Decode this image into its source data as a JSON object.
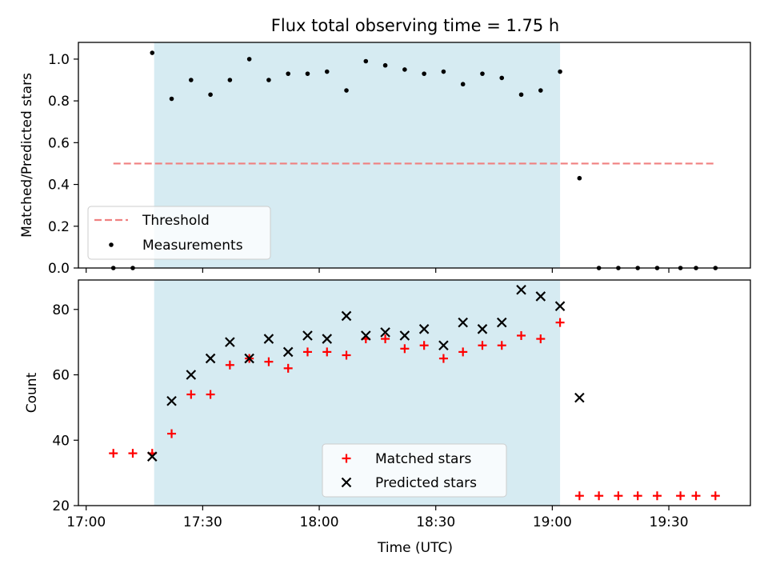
{
  "chart_data": {
    "title": "Flux total observing time = 1.75 h",
    "xlabel": "Time (UTC)",
    "x_domain_min": [
      16,
      58
    ],
    "x_domain_max": [
      19,
      51
    ],
    "x_ticks": [
      {
        "t": [
          17,
          0
        ],
        "label": "17:00"
      },
      {
        "t": [
          17,
          30
        ],
        "label": "17:30"
      },
      {
        "t": [
          18,
          0
        ],
        "label": "18:00"
      },
      {
        "t": [
          18,
          30
        ],
        "label": "18:30"
      },
      {
        "t": [
          19,
          0
        ],
        "label": "19:00"
      },
      {
        "t": [
          19,
          30
        ],
        "label": "19:30"
      }
    ],
    "observing_window": {
      "start": [
        17,
        17.5
      ],
      "end": [
        19,
        2
      ],
      "color": "#add8e6"
    },
    "panels": [
      {
        "type": "scatter",
        "ylabel": "Matched/Predicted stars",
        "ylim": [
          0,
          1.08
        ],
        "y_ticks": [
          "0.0",
          "0.2",
          "0.4",
          "0.6",
          "0.8",
          "1.0"
        ],
        "threshold": {
          "name": "Threshold",
          "value": 0.5,
          "x_start": [
            17,
            7
          ],
          "x_end": [
            19,
            42
          ],
          "color": "#f08080"
        },
        "legend": [
          "Threshold",
          "Measurements"
        ],
        "legend_position": "lower-left",
        "series": [
          {
            "name": "Measurements",
            "marker": "dot",
            "color": "#000000",
            "points": [
              [
                [
                  17,
                  7
                ],
                0
              ],
              [
                [
                  17,
                  12
                ],
                0
              ],
              [
                [
                  17,
                  17
                ],
                1.03
              ],
              [
                [
                  17,
                  22
                ],
                0.81
              ],
              [
                [
                  17,
                  27
                ],
                0.9
              ],
              [
                [
                  17,
                  32
                ],
                0.83
              ],
              [
                [
                  17,
                  37
                ],
                0.9
              ],
              [
                [
                  17,
                  42
                ],
                1.0
              ],
              [
                [
                  17,
                  47
                ],
                0.9
              ],
              [
                [
                  17,
                  52
                ],
                0.93
              ],
              [
                [
                  17,
                  57
                ],
                0.93
              ],
              [
                [
                  18,
                  2
                ],
                0.94
              ],
              [
                [
                  18,
                  7
                ],
                0.85
              ],
              [
                [
                  18,
                  12
                ],
                0.99
              ],
              [
                [
                  18,
                  17
                ],
                0.97
              ],
              [
                [
                  18,
                  22
                ],
                0.95
              ],
              [
                [
                  18,
                  27
                ],
                0.93
              ],
              [
                [
                  18,
                  32
                ],
                0.94
              ],
              [
                [
                  18,
                  37
                ],
                0.88
              ],
              [
                [
                  18,
                  42
                ],
                0.93
              ],
              [
                [
                  18,
                  47
                ],
                0.91
              ],
              [
                [
                  18,
                  52
                ],
                0.83
              ],
              [
                [
                  18,
                  57
                ],
                0.85
              ],
              [
                [
                  19,
                  2
                ],
                0.94
              ],
              [
                [
                  19,
                  7
                ],
                0.43
              ],
              [
                [
                  19,
                  12
                ],
                0
              ],
              [
                [
                  19,
                  17
                ],
                0
              ],
              [
                [
                  19,
                  22
                ],
                0
              ],
              [
                [
                  19,
                  27
                ],
                0
              ],
              [
                [
                  19,
                  33
                ],
                0
              ],
              [
                [
                  19,
                  37
                ],
                0
              ],
              [
                [
                  19,
                  42
                ],
                0
              ]
            ]
          }
        ]
      },
      {
        "type": "scatter",
        "ylabel": "Count",
        "ylim": [
          20,
          89
        ],
        "y_ticks": [
          "20",
          "40",
          "60",
          "80"
        ],
        "legend": [
          "Matched stars",
          "Predicted stars"
        ],
        "legend_position": "lower-center",
        "series": [
          {
            "name": "Matched stars",
            "marker": "plus",
            "color": "#ff0000",
            "points": [
              [
                [
                  17,
                  7
                ],
                36
              ],
              [
                [
                  17,
                  12
                ],
                36
              ],
              [
                [
                  17,
                  17
                ],
                36
              ],
              [
                [
                  17,
                  22
                ],
                42
              ],
              [
                [
                  17,
                  27
                ],
                54
              ],
              [
                [
                  17,
                  32
                ],
                54
              ],
              [
                [
                  17,
                  37
                ],
                63
              ],
              [
                [
                  17,
                  42
                ],
                65
              ],
              [
                [
                  17,
                  47
                ],
                64
              ],
              [
                [
                  17,
                  52
                ],
                62
              ],
              [
                [
                  17,
                  57
                ],
                67
              ],
              [
                [
                  18,
                  2
                ],
                67
              ],
              [
                [
                  18,
                  7
                ],
                66
              ],
              [
                [
                  18,
                  12
                ],
                71
              ],
              [
                [
                  18,
                  17
                ],
                71
              ],
              [
                [
                  18,
                  22
                ],
                68
              ],
              [
                [
                  18,
                  27
                ],
                69
              ],
              [
                [
                  18,
                  32
                ],
                65
              ],
              [
                [
                  18,
                  37
                ],
                67
              ],
              [
                [
                  18,
                  42
                ],
                69
              ],
              [
                [
                  18,
                  47
                ],
                69
              ],
              [
                [
                  18,
                  52
                ],
                72
              ],
              [
                [
                  18,
                  57
                ],
                71
              ],
              [
                [
                  19,
                  2
                ],
                76
              ],
              [
                [
                  19,
                  7
                ],
                23
              ],
              [
                [
                  19,
                  12
                ],
                23
              ],
              [
                [
                  19,
                  17
                ],
                23
              ],
              [
                [
                  19,
                  22
                ],
                23
              ],
              [
                [
                  19,
                  27
                ],
                23
              ],
              [
                [
                  19,
                  33
                ],
                23
              ],
              [
                [
                  19,
                  37
                ],
                23
              ],
              [
                [
                  19,
                  42
                ],
                23
              ]
            ]
          },
          {
            "name": "Predicted stars",
            "marker": "x",
            "color": "#000000",
            "points": [
              [
                [
                  17,
                  17
                ],
                35
              ],
              [
                [
                  17,
                  22
                ],
                52
              ],
              [
                [
                  17,
                  27
                ],
                60
              ],
              [
                [
                  17,
                  32
                ],
                65
              ],
              [
                [
                  17,
                  37
                ],
                70
              ],
              [
                [
                  17,
                  42
                ],
                65
              ],
              [
                [
                  17,
                  47
                ],
                71
              ],
              [
                [
                  17,
                  52
                ],
                67
              ],
              [
                [
                  17,
                  57
                ],
                72
              ],
              [
                [
                  18,
                  2
                ],
                71
              ],
              [
                [
                  18,
                  7
                ],
                78
              ],
              [
                [
                  18,
                  12
                ],
                72
              ],
              [
                [
                  18,
                  17
                ],
                73
              ],
              [
                [
                  18,
                  22
                ],
                72
              ],
              [
                [
                  18,
                  27
                ],
                74
              ],
              [
                [
                  18,
                  32
                ],
                69
              ],
              [
                [
                  18,
                  37
                ],
                76
              ],
              [
                [
                  18,
                  42
                ],
                74
              ],
              [
                [
                  18,
                  47
                ],
                76
              ],
              [
                [
                  18,
                  52
                ],
                86
              ],
              [
                [
                  18,
                  57
                ],
                84
              ],
              [
                [
                  19,
                  2
                ],
                81
              ],
              [
                [
                  19,
                  7
                ],
                53
              ]
            ]
          }
        ]
      }
    ]
  }
}
